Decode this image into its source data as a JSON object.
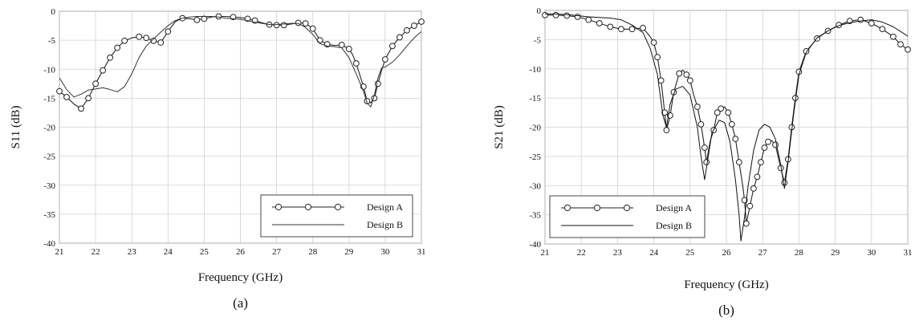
{
  "chart_data": [
    {
      "type": "line",
      "panel_label": "(a)",
      "xlabel": "Frequency (GHz)",
      "ylabel": "S11 (dB)",
      "xlim": [
        21,
        31
      ],
      "ylim": [
        -40,
        0
      ],
      "x_ticks": [
        "21",
        "22",
        "23",
        "24",
        "25",
        "26",
        "27",
        "28",
        "29",
        "30",
        "31"
      ],
      "y_ticks": [
        "0",
        "-5",
        "-10",
        "-15",
        "-20",
        "-25",
        "-30",
        "-35",
        "-40"
      ],
      "grid": true,
      "legend_position": "bottom-right",
      "series": [
        {
          "name": "Design A",
          "style": "line-with-circle-markers",
          "color": "#222222",
          "points": [
            [
              21.0,
              -13.8
            ],
            [
              21.2,
              -14.8
            ],
            [
              21.4,
              -16.0
            ],
            [
              21.6,
              -16.8
            ],
            [
              21.8,
              -15.0
            ],
            [
              22.0,
              -12.5
            ],
            [
              22.2,
              -10.2
            ],
            [
              22.4,
              -8.0
            ],
            [
              22.6,
              -6.3
            ],
            [
              22.8,
              -5.1
            ],
            [
              23.0,
              -4.6
            ],
            [
              23.2,
              -4.4
            ],
            [
              23.4,
              -4.6
            ],
            [
              23.6,
              -5.1
            ],
            [
              23.8,
              -5.4
            ],
            [
              24.0,
              -3.5
            ],
            [
              24.2,
              -1.8
            ],
            [
              24.4,
              -1.2
            ],
            [
              24.6,
              -1.3
            ],
            [
              24.8,
              -1.5
            ],
            [
              25.0,
              -1.3
            ],
            [
              25.2,
              -1.0
            ],
            [
              25.4,
              -0.9
            ],
            [
              25.6,
              -0.9
            ],
            [
              25.8,
              -1.0
            ],
            [
              26.0,
              -1.1
            ],
            [
              26.2,
              -1.3
            ],
            [
              26.4,
              -1.6
            ],
            [
              26.6,
              -2.0
            ],
            [
              26.8,
              -2.3
            ],
            [
              27.0,
              -2.4
            ],
            [
              27.2,
              -2.4
            ],
            [
              27.4,
              -2.2
            ],
            [
              27.6,
              -2.0
            ],
            [
              27.8,
              -2.1
            ],
            [
              28.0,
              -3.0
            ],
            [
              28.2,
              -5.0
            ],
            [
              28.4,
              -5.7
            ],
            [
              28.6,
              -5.9
            ],
            [
              28.8,
              -5.8
            ],
            [
              29.0,
              -6.5
            ],
            [
              29.1,
              -7.5
            ],
            [
              29.2,
              -9.0
            ],
            [
              29.3,
              -11.0
            ],
            [
              29.4,
              -13.0
            ],
            [
              29.5,
              -15.5
            ],
            [
              29.6,
              -15.8
            ],
            [
              29.7,
              -15.0
            ],
            [
              29.8,
              -12.5
            ],
            [
              29.9,
              -10.2
            ],
            [
              30.0,
              -8.3
            ],
            [
              30.2,
              -6.0
            ],
            [
              30.4,
              -4.5
            ],
            [
              30.6,
              -3.3
            ],
            [
              30.8,
              -2.5
            ],
            [
              31.0,
              -1.8
            ]
          ],
          "marker_x": [
            21.0,
            21.2,
            21.6,
            21.8,
            22.0,
            22.2,
            22.4,
            22.6,
            22.8,
            23.2,
            23.4,
            23.6,
            23.8,
            24.0,
            24.4,
            24.8,
            25.0,
            25.4,
            25.8,
            26.2,
            26.4,
            26.8,
            27.0,
            27.2,
            27.6,
            27.8,
            28.0,
            28.2,
            28.4,
            28.8,
            29.0,
            29.2,
            29.4,
            29.5,
            29.7,
            29.8,
            30.0,
            30.2,
            30.4,
            30.6,
            30.8,
            31.0
          ]
        },
        {
          "name": "Design B",
          "style": "line",
          "color": "#333333",
          "points": [
            [
              21.0,
              -11.5
            ],
            [
              21.2,
              -13.5
            ],
            [
              21.4,
              -14.8
            ],
            [
              21.6,
              -14.3
            ],
            [
              21.8,
              -13.6
            ],
            [
              22.0,
              -13.4
            ],
            [
              22.2,
              -13.2
            ],
            [
              22.4,
              -13.5
            ],
            [
              22.6,
              -13.9
            ],
            [
              22.8,
              -13.0
            ],
            [
              23.0,
              -10.8
            ],
            [
              23.2,
              -8.0
            ],
            [
              23.4,
              -6.0
            ],
            [
              23.6,
              -4.8
            ],
            [
              23.8,
              -3.6
            ],
            [
              24.0,
              -2.5
            ],
            [
              24.2,
              -1.6
            ],
            [
              24.4,
              -1.2
            ],
            [
              24.6,
              -1.0
            ],
            [
              24.8,
              -0.9
            ],
            [
              25.0,
              -0.9
            ],
            [
              25.2,
              -0.9
            ],
            [
              25.4,
              -1.0
            ],
            [
              25.6,
              -1.2
            ],
            [
              25.8,
              -1.3
            ],
            [
              26.0,
              -1.4
            ],
            [
              26.2,
              -1.6
            ],
            [
              26.4,
              -1.9
            ],
            [
              26.6,
              -2.1
            ],
            [
              26.8,
              -2.3
            ],
            [
              27.0,
              -2.3
            ],
            [
              27.2,
              -2.2
            ],
            [
              27.4,
              -2.1
            ],
            [
              27.6,
              -2.1
            ],
            [
              27.8,
              -2.8
            ],
            [
              28.0,
              -4.0
            ],
            [
              28.2,
              -5.6
            ],
            [
              28.4,
              -6.0
            ],
            [
              28.6,
              -6.1
            ],
            [
              28.8,
              -6.3
            ],
            [
              29.0,
              -8.0
            ],
            [
              29.2,
              -10.8
            ],
            [
              29.4,
              -13.8
            ],
            [
              29.5,
              -15.8
            ],
            [
              29.6,
              -16.5
            ],
            [
              29.7,
              -14.5
            ],
            [
              29.8,
              -11.5
            ],
            [
              29.9,
              -9.8
            ],
            [
              30.0,
              -9.6
            ],
            [
              30.2,
              -8.8
            ],
            [
              30.4,
              -7.5
            ],
            [
              30.6,
              -6.0
            ],
            [
              30.8,
              -4.6
            ],
            [
              31.0,
              -3.5
            ]
          ]
        }
      ]
    },
    {
      "type": "line",
      "panel_label": "(b)",
      "xlabel": "Frequency (GHz)",
      "ylabel": "S21 (dB)",
      "xlim": [
        21,
        31
      ],
      "ylim": [
        -40,
        0
      ],
      "x_ticks": [
        "21",
        "22",
        "23",
        "24",
        "25",
        "26",
        "27",
        "28",
        "29",
        "30",
        "31"
      ],
      "y_ticks": [
        "0",
        "-5",
        "-10",
        "-15",
        "-20",
        "-25",
        "-30",
        "-35",
        "-40"
      ],
      "grid": true,
      "legend_position": "bottom-left",
      "series": [
        {
          "name": "Design A",
          "style": "line-with-circle-markers",
          "color": "#222222",
          "points": [
            [
              21.0,
              -0.8
            ],
            [
              21.3,
              -0.8
            ],
            [
              21.6,
              -0.9
            ],
            [
              21.9,
              -1.1
            ],
            [
              22.2,
              -1.6
            ],
            [
              22.5,
              -2.2
            ],
            [
              22.8,
              -2.8
            ],
            [
              23.1,
              -3.2
            ],
            [
              23.4,
              -3.2
            ],
            [
              23.7,
              -3.0
            ],
            [
              23.9,
              -4.5
            ],
            [
              24.0,
              -5.5
            ],
            [
              24.1,
              -8.0
            ],
            [
              24.2,
              -12.0
            ],
            [
              24.3,
              -17.5
            ],
            [
              24.35,
              -20.5
            ],
            [
              24.45,
              -18.0
            ],
            [
              24.55,
              -14.0
            ],
            [
              24.7,
              -10.8
            ],
            [
              24.8,
              -10.2
            ],
            [
              24.9,
              -11.0
            ],
            [
              25.0,
              -12.0
            ],
            [
              25.1,
              -14.5
            ],
            [
              25.2,
              -16.5
            ],
            [
              25.3,
              -19.5
            ],
            [
              25.4,
              -23.5
            ],
            [
              25.45,
              -26.0
            ],
            [
              25.55,
              -22.5
            ],
            [
              25.65,
              -20.5
            ],
            [
              25.75,
              -17.5
            ],
            [
              25.85,
              -16.8
            ],
            [
              25.95,
              -16.5
            ],
            [
              26.05,
              -17.5
            ],
            [
              26.15,
              -19.5
            ],
            [
              26.25,
              -22.0
            ],
            [
              26.35,
              -26.0
            ],
            [
              26.45,
              -30.0
            ],
            [
              26.5,
              -32.5
            ],
            [
              26.55,
              -36.5
            ],
            [
              26.65,
              -33.5
            ],
            [
              26.75,
              -30.5
            ],
            [
              26.85,
              -28.5
            ],
            [
              26.95,
              -26.0
            ],
            [
              27.05,
              -23.5
            ],
            [
              27.15,
              -22.5
            ],
            [
              27.25,
              -22.3
            ],
            [
              27.35,
              -23.0
            ],
            [
              27.5,
              -27.0
            ],
            [
              27.6,
              -29.5
            ],
            [
              27.7,
              -25.5
            ],
            [
              27.8,
              -20.0
            ],
            [
              27.9,
              -15.0
            ],
            [
              28.0,
              -10.5
            ],
            [
              28.2,
              -7.0
            ],
            [
              28.5,
              -4.8
            ],
            [
              28.8,
              -3.5
            ],
            [
              29.1,
              -2.5
            ],
            [
              29.4,
              -1.8
            ],
            [
              29.7,
              -1.6
            ],
            [
              30.0,
              -2.2
            ],
            [
              30.3,
              -3.2
            ],
            [
              30.6,
              -4.5
            ],
            [
              30.8,
              -5.8
            ],
            [
              31.0,
              -6.7
            ]
          ],
          "marker_x": [
            21.0,
            21.3,
            21.6,
            21.9,
            22.2,
            22.5,
            22.8,
            23.1,
            23.4,
            23.7,
            24.0,
            24.1,
            24.2,
            24.3,
            24.35,
            24.45,
            24.55,
            24.7,
            24.9,
            25.0,
            25.2,
            25.3,
            25.4,
            25.45,
            25.65,
            25.75,
            25.85,
            26.05,
            26.15,
            26.25,
            26.35,
            26.5,
            26.55,
            26.65,
            26.75,
            26.85,
            26.95,
            27.05,
            27.15,
            27.35,
            27.5,
            27.6,
            27.7,
            27.8,
            27.9,
            28.0,
            28.2,
            28.5,
            28.8,
            29.1,
            29.4,
            29.7,
            30.0,
            30.3,
            30.6,
            30.8,
            31.0
          ]
        },
        {
          "name": "Design B",
          "style": "line",
          "color": "#111111",
          "points": [
            [
              21.0,
              -0.6
            ],
            [
              21.3,
              -0.6
            ],
            [
              21.6,
              -0.7
            ],
            [
              21.9,
              -0.9
            ],
            [
              22.2,
              -1.1
            ],
            [
              22.5,
              -1.2
            ],
            [
              22.8,
              -1.3
            ],
            [
              23.1,
              -1.6
            ],
            [
              23.4,
              -2.5
            ],
            [
              23.7,
              -3.8
            ],
            [
              23.9,
              -6.5
            ],
            [
              24.1,
              -11.0
            ],
            [
              24.25,
              -18.0
            ],
            [
              24.35,
              -20.0
            ],
            [
              24.45,
              -16.0
            ],
            [
              24.6,
              -13.5
            ],
            [
              24.8,
              -13.0
            ],
            [
              25.0,
              -14.5
            ],
            [
              25.2,
              -20.0
            ],
            [
              25.3,
              -25.0
            ],
            [
              25.4,
              -29.0
            ],
            [
              25.5,
              -25.0
            ],
            [
              25.6,
              -21.0
            ],
            [
              25.8,
              -18.8
            ],
            [
              25.95,
              -19.2
            ],
            [
              26.1,
              -22.5
            ],
            [
              26.25,
              -29.0
            ],
            [
              26.35,
              -35.0
            ],
            [
              26.4,
              -39.5
            ],
            [
              26.5,
              -35.5
            ],
            [
              26.6,
              -30.0
            ],
            [
              26.75,
              -24.0
            ],
            [
              26.9,
              -20.5
            ],
            [
              27.05,
              -19.5
            ],
            [
              27.2,
              -20.0
            ],
            [
              27.35,
              -22.0
            ],
            [
              27.5,
              -26.5
            ],
            [
              27.6,
              -30.5
            ],
            [
              27.7,
              -26.0
            ],
            [
              27.85,
              -18.0
            ],
            [
              28.0,
              -11.0
            ],
            [
              28.2,
              -7.2
            ],
            [
              28.5,
              -4.7
            ],
            [
              28.8,
              -3.5
            ],
            [
              29.1,
              -2.6
            ],
            [
              29.4,
              -2.1
            ],
            [
              29.7,
              -1.8
            ],
            [
              30.0,
              -1.6
            ],
            [
              30.3,
              -2.0
            ],
            [
              30.6,
              -2.8
            ],
            [
              30.8,
              -3.6
            ],
            [
              31.0,
              -4.4
            ]
          ]
        }
      ]
    }
  ]
}
